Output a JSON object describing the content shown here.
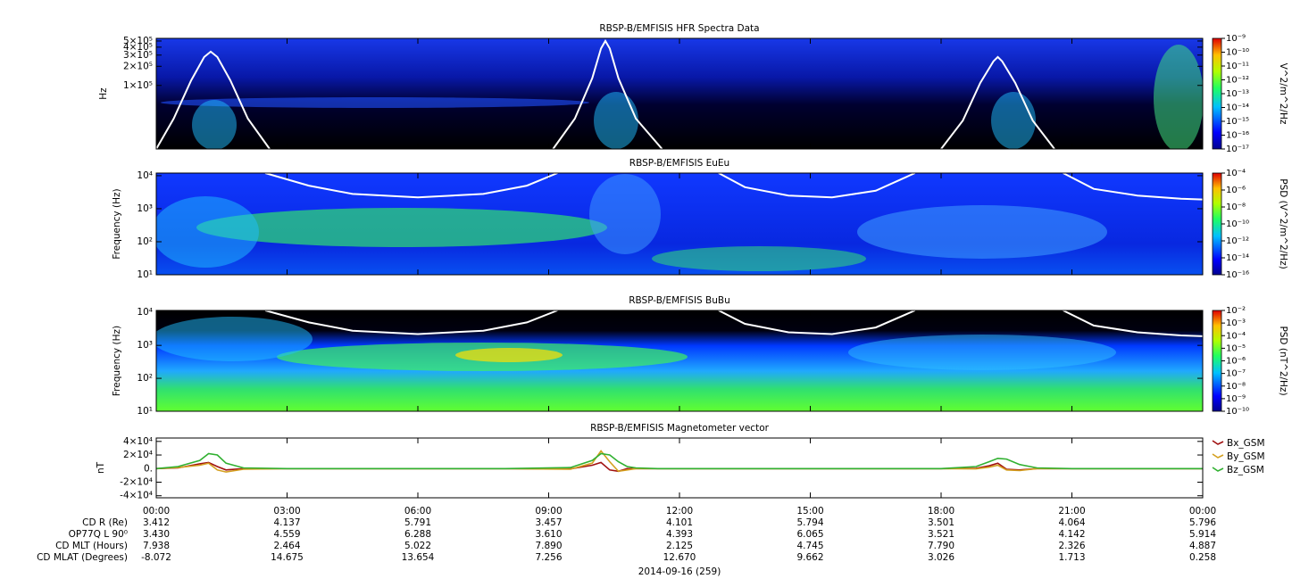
{
  "chart_data": [
    {
      "type": "spectrogram",
      "title": "RBSP-B/EMFISIS  HFR Spectra Data",
      "ylabel": "Hz",
      "log_y": true,
      "xlim": [
        0,
        24
      ],
      "ylim": [
        10000,
        550000
      ],
      "yticks": [
        {
          "value": 100000,
          "label": "1×10⁵"
        },
        {
          "value": 200000,
          "label": "2×10⁵"
        },
        {
          "value": 300000,
          "label": "3×10⁵"
        },
        {
          "value": 400000,
          "label": "4×10⁵"
        },
        {
          "value": 500000,
          "label": "5×10⁵"
        }
      ],
      "colorbar": {
        "label": "V^2/m^2/Hz",
        "log": true,
        "lim": [
          1e-17,
          1e-09
        ],
        "ticks": [
          {
            "value": 1e-09,
            "label": "10⁻⁹"
          },
          {
            "value": 1e-10,
            "label": "10⁻¹⁰"
          },
          {
            "value": 1e-11,
            "label": "10⁻¹¹"
          },
          {
            "value": 1e-12,
            "label": "10⁻¹²"
          },
          {
            "value": 1e-13,
            "label": "10⁻¹³"
          },
          {
            "value": 1e-14,
            "label": "10⁻¹⁴"
          },
          {
            "value": 1e-15,
            "label": "10⁻¹⁵"
          },
          {
            "value": 1e-16,
            "label": "10⁻¹⁶"
          },
          {
            "value": 1e-17,
            "label": "10⁻¹⁷"
          }
        ]
      },
      "series": [
        {
          "color": "#ffffff",
          "x": [
            0,
            0.4,
            0.8,
            1.1,
            1.25,
            1.4,
            1.7,
            2.1,
            2.6,
            5,
            9.1,
            9.6,
            10.0,
            10.2,
            10.3,
            10.4,
            10.6,
            11.0,
            11.6,
            15,
            18.0,
            18.5,
            18.9,
            19.2,
            19.3,
            19.4,
            19.7,
            20.1,
            20.6
          ],
          "values": [
            10000,
            30000,
            120000,
            280000,
            340000,
            280000,
            120000,
            30000,
            10000,
            null,
            10000,
            30000,
            130000,
            380000,
            500000,
            380000,
            130000,
            30000,
            10000,
            null,
            10000,
            28000,
            110000,
            240000,
            280000,
            240000,
            110000,
            28000,
            10000
          ]
        }
      ]
    },
    {
      "type": "spectrogram",
      "title": "RBSP-B/EMFISIS  EuEu",
      "ylabel": "Frequency (Hz)",
      "log_y": true,
      "xlim": [
        0,
        24
      ],
      "ylim": [
        10,
        12000
      ],
      "yticks": [
        {
          "value": 10,
          "label": "10¹"
        },
        {
          "value": 100,
          "label": "10²"
        },
        {
          "value": 1000,
          "label": "10³"
        },
        {
          "value": 10000,
          "label": "10⁴"
        }
      ],
      "colorbar": {
        "label": "PSD (V^2/m^2/Hz)",
        "log": true,
        "lim": [
          1e-16,
          0.0001
        ],
        "ticks": [
          {
            "value": 0.0001,
            "label": "10⁻⁴"
          },
          {
            "value": 1e-06,
            "label": "10⁻⁶"
          },
          {
            "value": 1e-08,
            "label": "10⁻⁸"
          },
          {
            "value": 1e-10,
            "label": "10⁻¹⁰"
          },
          {
            "value": 1e-12,
            "label": "10⁻¹²"
          },
          {
            "value": 1e-14,
            "label": "10⁻¹⁴"
          },
          {
            "value": 1e-16,
            "label": "10⁻¹⁶"
          }
        ]
      },
      "series": [
        {
          "color": "#ffffff",
          "x": [
            2.5,
            3.5,
            4.5,
            6,
            7.5,
            8.5,
            9.2,
            11,
            12.9,
            13.5,
            14.5,
            15.5,
            16.5,
            17.4,
            19,
            20.8,
            21.5,
            22.5,
            23.5,
            24
          ],
          "values": [
            12000,
            5000,
            2800,
            2200,
            2800,
            5000,
            12000,
            null,
            12000,
            4500,
            2500,
            2200,
            3500,
            12000,
            null,
            12000,
            4000,
            2500,
            2000,
            1900
          ]
        }
      ]
    },
    {
      "type": "spectrogram",
      "title": "RBSP-B/EMFISIS  BuBu",
      "ylabel": "Frequency (Hz)",
      "log_y": true,
      "xlim": [
        0,
        24
      ],
      "ylim": [
        10,
        11500
      ],
      "yticks": [
        {
          "value": 10,
          "label": "10¹"
        },
        {
          "value": 100,
          "label": "10²"
        },
        {
          "value": 1000,
          "label": "10³"
        },
        {
          "value": 10000,
          "label": "10⁴"
        }
      ],
      "colorbar": {
        "label": "PSD (nT^2/Hz)",
        "log": true,
        "lim": [
          1e-10,
          0.01
        ],
        "ticks": [
          {
            "value": 0.01,
            "label": "10⁻²"
          },
          {
            "value": 0.001,
            "label": "10⁻³"
          },
          {
            "value": 0.0001,
            "label": "10⁻⁴"
          },
          {
            "value": 1e-05,
            "label": "10⁻⁵"
          },
          {
            "value": 1e-06,
            "label": "10⁻⁶"
          },
          {
            "value": 1e-07,
            "label": "10⁻⁷"
          },
          {
            "value": 1e-08,
            "label": "10⁻⁸"
          },
          {
            "value": 1e-09,
            "label": "10⁻⁹"
          },
          {
            "value": 1e-10,
            "label": "10⁻¹⁰"
          }
        ]
      },
      "series": [
        {
          "color": "#ffffff",
          "x": [
            2.5,
            3.5,
            4.5,
            6,
            7.5,
            8.5,
            9.2,
            11,
            12.9,
            13.5,
            14.5,
            15.5,
            16.5,
            17.4,
            19,
            20.8,
            21.5,
            22.5,
            23.5,
            24
          ],
          "values": [
            11500,
            5000,
            2800,
            2200,
            2800,
            5000,
            11500,
            null,
            11500,
            4500,
            2500,
            2200,
            3500,
            11500,
            null,
            11500,
            4000,
            2500,
            2000,
            1900
          ]
        }
      ]
    },
    {
      "type": "line",
      "title": "RBSP-B/EMFISIS  Magnetometer vector",
      "ylabel": "nT",
      "xlim": [
        0,
        24
      ],
      "ylim": [
        -43000,
        45000
      ],
      "yticks": [
        {
          "value": -40000,
          "label": "-4×10⁴"
        },
        {
          "value": -20000,
          "label": "-2×10⁴"
        },
        {
          "value": 0,
          "label": "0."
        },
        {
          "value": 20000,
          "label": "2×10⁴"
        },
        {
          "value": 40000,
          "label": "4×10⁴"
        }
      ],
      "xticks": [
        {
          "value": 0,
          "label": "00:00"
        },
        {
          "value": 3,
          "label": "03:00"
        },
        {
          "value": 6,
          "label": "06:00"
        },
        {
          "value": 9,
          "label": "09:00"
        },
        {
          "value": 12,
          "label": "12:00"
        },
        {
          "value": 15,
          "label": "15:00"
        },
        {
          "value": 18,
          "label": "18:00"
        },
        {
          "value": 21,
          "label": "21:00"
        },
        {
          "value": 24,
          "label": "00:00"
        }
      ],
      "legend": "right",
      "x": [
        0,
        0.5,
        1,
        1.2,
        1.4,
        1.6,
        2,
        3,
        8,
        9.5,
        10,
        10.2,
        10.4,
        10.6,
        10.8,
        11,
        11.5,
        12,
        18,
        18.8,
        19.1,
        19.3,
        19.5,
        19.8,
        20.2,
        21,
        24
      ],
      "series": [
        {
          "name": "Bx_GSM",
          "color": "#a01010",
          "values": [
            0,
            1000,
            7000,
            9000,
            3000,
            -2000,
            0,
            0,
            0,
            -500,
            5000,
            9000,
            -2000,
            -4000,
            0,
            0,
            0,
            0,
            0,
            500,
            4000,
            8000,
            -1000,
            -2000,
            0,
            0,
            0
          ]
        },
        {
          "name": "By_GSM",
          "color": "#d4a020",
          "values": [
            0,
            1500,
            5000,
            8000,
            -2000,
            -5000,
            -1000,
            0,
            0,
            -1000,
            8000,
            26000,
            10000,
            -4000,
            -2000,
            0,
            0,
            0,
            0,
            -500,
            2000,
            5000,
            -2000,
            -3000,
            0,
            0,
            0
          ]
        },
        {
          "name": "Bz_GSM",
          "color": "#30b030",
          "values": [
            0,
            3000,
            12000,
            22000,
            20000,
            8000,
            1000,
            0,
            0,
            1500,
            12000,
            22000,
            20000,
            10000,
            3000,
            1000,
            0,
            0,
            0,
            3000,
            10000,
            15000,
            14000,
            6000,
            1000,
            0,
            0
          ]
        }
      ]
    }
  ],
  "ephemeris": {
    "rows": [
      {
        "label": "CD R (Re)",
        "values": [
          "3.412",
          "4.137",
          "5.791",
          "3.457",
          "4.101",
          "5.794",
          "3.501",
          "4.064",
          "5.796"
        ]
      },
      {
        "label": "OP77Q L 90⁰",
        "values": [
          "3.430",
          "4.559",
          "6.288",
          "3.610",
          "4.393",
          "6.065",
          "3.521",
          "4.142",
          "5.914"
        ]
      },
      {
        "label": "CD MLT (Hours)",
        "values": [
          "7.938",
          "2.464",
          "5.022",
          "7.890",
          "2.125",
          "4.745",
          "7.790",
          "2.326",
          "4.887"
        ]
      },
      {
        "label": "CD MLAT (Degrees)",
        "values": [
          "-8.072",
          "14.675",
          "13.654",
          "7.256",
          "12.670",
          "9.662",
          "3.026",
          "1.713",
          "0.258"
        ]
      }
    ]
  },
  "date_label": "2014-09-16 (259)"
}
